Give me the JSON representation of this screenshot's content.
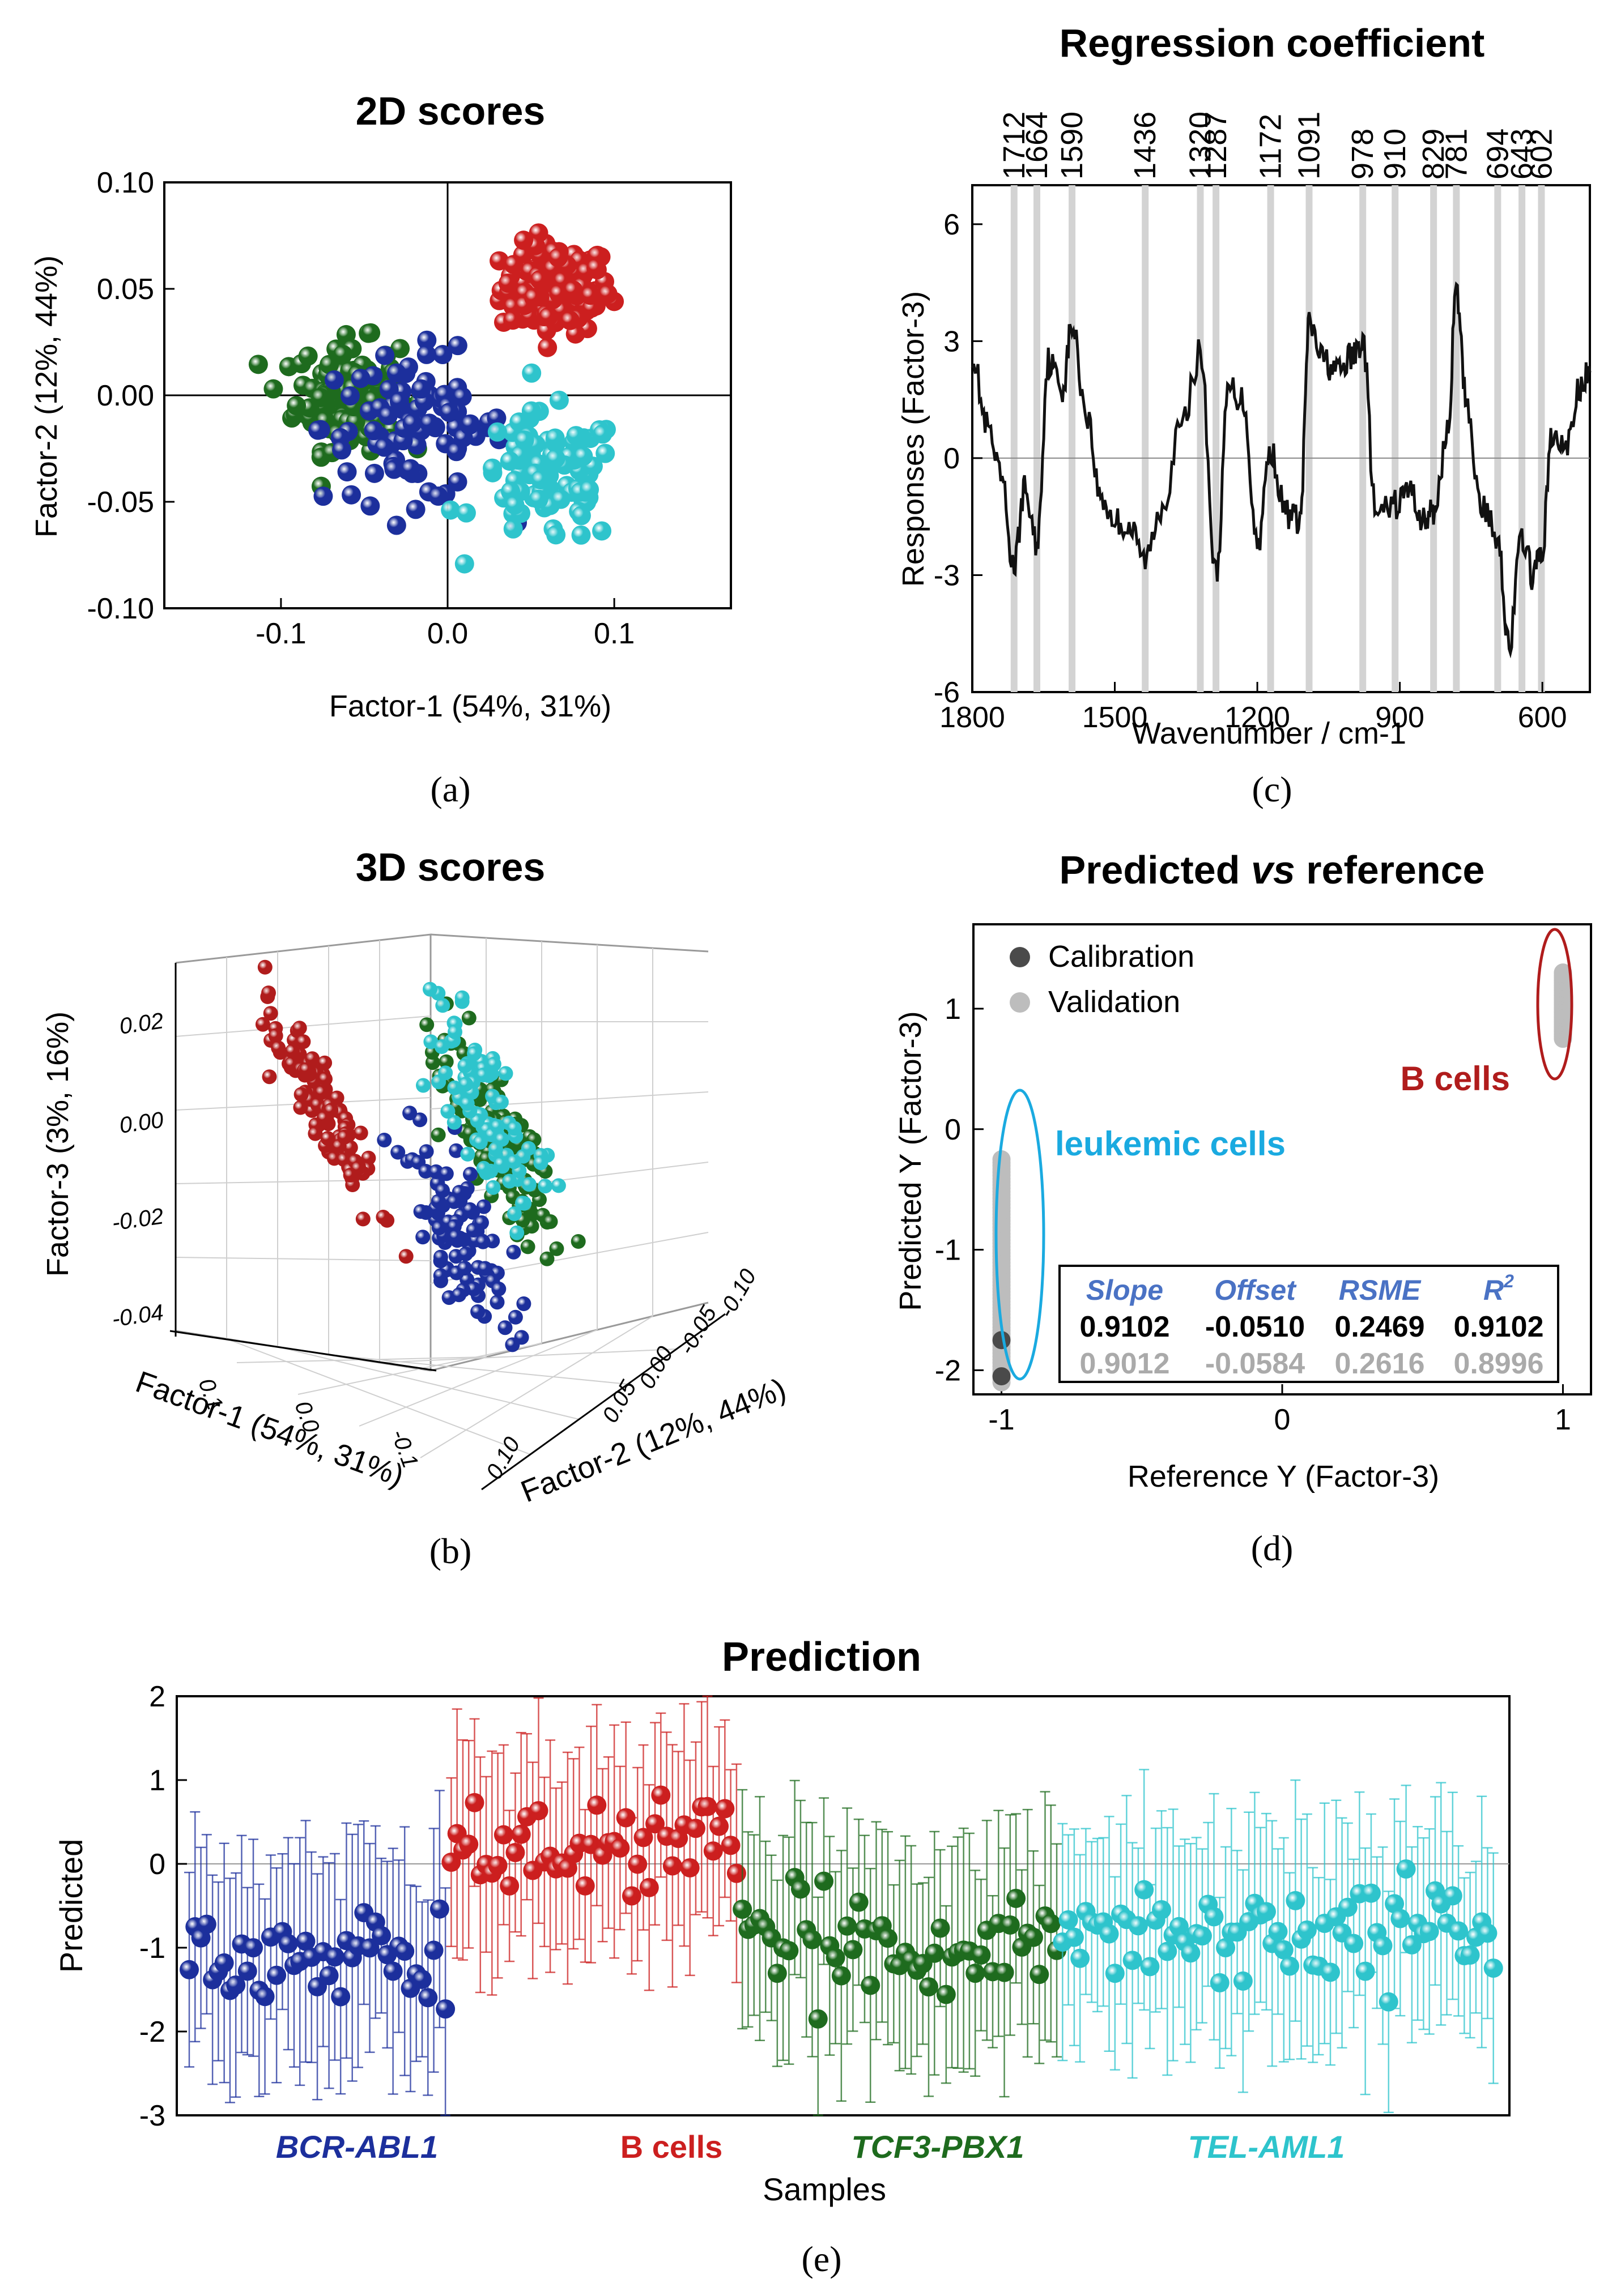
{
  "figure": {
    "panels": {
      "a": "(a)",
      "b": "(b)",
      "c": "(c)",
      "d": "(d)",
      "e": "(e)"
    }
  },
  "chart_data": [
    {
      "id": "a",
      "type": "scatter",
      "title": "2D scores",
      "xlabel": "Factor-1 (54%, 31%)",
      "ylabel": "Factor-2 (12%, 44%)",
      "xlim": [
        -0.17,
        0.17
      ],
      "ylim": [
        -0.1,
        0.1
      ],
      "xticks": [
        -0.1,
        0.0,
        0.1
      ],
      "xtick_labels": [
        "-0.1",
        "0.0",
        "0.1"
      ],
      "yticks": [
        -0.1,
        -0.05,
        0.0,
        0.05,
        0.1
      ],
      "ytick_labels": [
        "-0.10",
        "-0.05",
        "0.00",
        "0.05",
        "0.10"
      ],
      "series": [
        {
          "name": "B cells",
          "color": "#cc1f1f",
          "center": [
            0.065,
            0.05
          ],
          "spread": [
            0.03,
            0.015
          ],
          "count": 120
        },
        {
          "name": "TCF3-PBX1",
          "color": "#1e6b1e",
          "center": [
            -0.06,
            0.0
          ],
          "spread": [
            0.028,
            0.018
          ],
          "count": 150
        },
        {
          "name": "BCR-ABL1",
          "color": "#1c2f9c",
          "center": [
            -0.02,
            -0.015
          ],
          "spread": [
            0.05,
            0.025
          ],
          "count": 90
        },
        {
          "name": "TEL-AML1",
          "color": "#2ec4cc",
          "center": [
            0.06,
            -0.04
          ],
          "spread": [
            0.04,
            0.022
          ],
          "count": 90
        }
      ]
    },
    {
      "id": "c",
      "type": "line",
      "title": "Regression coefficient",
      "xlabel": "Wavenumber / cm-1",
      "ylabel": "Responses (Factor-3)",
      "xlim": [
        1800,
        500
      ],
      "ylim": [
        -6,
        7
      ],
      "xticks": [
        1800,
        1500,
        1200,
        900,
        600
      ],
      "xtick_labels": [
        "1800",
        "1500",
        "1200",
        "900",
        "600"
      ],
      "yticks": [
        -6,
        -3,
        0,
        3,
        6
      ],
      "ytick_labels": [
        "-6",
        "-3",
        "0",
        "3",
        "6"
      ],
      "bands": [
        1712,
        1664,
        1590,
        1436,
        1320,
        1287,
        1172,
        1091,
        978,
        910,
        829,
        781,
        694,
        643,
        602
      ],
      "band_labels": [
        "1712",
        "1664",
        "1590",
        "1436",
        "1320",
        "1287",
        "1172",
        "1091",
        "978",
        "910",
        "829",
        "781",
        "694",
        "643",
        "602"
      ],
      "x": [
        1800,
        1770,
        1740,
        1712,
        1690,
        1664,
        1640,
        1610,
        1590,
        1560,
        1530,
        1500,
        1470,
        1436,
        1400,
        1360,
        1320,
        1287,
        1260,
        1230,
        1200,
        1172,
        1140,
        1110,
        1091,
        1060,
        1030,
        1000,
        978,
        950,
        910,
        880,
        850,
        829,
        800,
        781,
        760,
        730,
        694,
        670,
        643,
        620,
        602,
        580,
        550,
        520,
        500
      ],
      "y": [
        2.7,
        0.8,
        -0.5,
        -2.8,
        -0.8,
        -2.2,
        2.5,
        1.8,
        3.4,
        1.2,
        -1.0,
        -1.6,
        -1.8,
        -2.6,
        -1.2,
        0.8,
        2.7,
        -3.0,
        1.8,
        1.5,
        -2.2,
        0.2,
        -1.4,
        -1.6,
        3.4,
        2.5,
        2.2,
        2.6,
        3.0,
        -1.5,
        -1.2,
        -0.8,
        -1.6,
        -1.4,
        0.6,
        4.2,
        1.5,
        -1.2,
        -2.0,
        -4.8,
        -2.0,
        -3.0,
        -2.5,
        0.5,
        0.3,
        1.8,
        2.2
      ]
    },
    {
      "id": "b",
      "type": "scatter",
      "title": "3D scores",
      "xlabel": "Factor-1 (54%, 31%)",
      "ylabel": "Factor-2 (12%, 44%)",
      "zlabel": "Factor-3 (3%, 16%)",
      "x_tick_labels": [
        "0.1",
        "0.0",
        "-0.1"
      ],
      "y_tick_labels": [
        "-0.10",
        "-0.05",
        "0.00",
        "0.05",
        "0.10"
      ],
      "z_tick_labels": [
        "-0.04",
        "-0.02",
        "0.00",
        "0.02"
      ],
      "zlim": [
        -0.04,
        0.03
      ],
      "series": [
        {
          "name": "B cells",
          "color": "#b01c1c",
          "count": 120
        },
        {
          "name": "TCF3-PBX1",
          "color": "#1e6b1e",
          "count": 150
        },
        {
          "name": "BCR-ABL1",
          "color": "#1c2f9c",
          "count": 90
        },
        {
          "name": "TEL-AML1",
          "color": "#2ec4cc",
          "count": 90
        }
      ]
    },
    {
      "id": "d",
      "type": "scatter",
      "title_pre": "Predicted ",
      "title_em": "vs",
      "title_post": " reference",
      "xlabel": "Reference Y (Factor-3)",
      "ylabel": "Predicted Y (Factor-3)",
      "xlim": [
        -1.1,
        1.1
      ],
      "ylim": [
        -2.2,
        1.7
      ],
      "xticks": [
        -1,
        0,
        1
      ],
      "xtick_labels": [
        "-1",
        "0",
        "1"
      ],
      "yticks": [
        -2,
        -1,
        0,
        1
      ],
      "ytick_labels": [
        "-2",
        "-1",
        "0",
        "1"
      ],
      "legend": [
        {
          "label": "Calibration",
          "color": "#4a4a4a"
        },
        {
          "label": "Validation",
          "color": "#bdbdbd"
        }
      ],
      "groups": [
        {
          "label": "B cells",
          "color": "#b01c1c",
          "x": 1,
          "y_range": [
            0.75,
            1.3
          ]
        },
        {
          "label": "leukemic cells",
          "color": "#1aaae0",
          "x": -1,
          "y_range": [
            -2.1,
            -0.25
          ]
        }
      ],
      "stats_table": {
        "headers": [
          "Slope",
          "Offset",
          "RSME",
          "R"
        ],
        "header_sup": "2",
        "calibration": [
          "0.9102",
          "-0.0510",
          "0.2469",
          "0.9102"
        ],
        "validation": [
          "0.9012",
          "-0.0584",
          "0.2616",
          "0.8996"
        ]
      }
    },
    {
      "id": "e",
      "type": "scatter",
      "title": "Prediction",
      "xlabel": "Samples",
      "ylabel": "Predicted",
      "ylim": [
        -3,
        2
      ],
      "yticks": [
        -3,
        -2,
        -1,
        0,
        1,
        2
      ],
      "ytick_labels": [
        "-3",
        "-2",
        "-1",
        "0",
        "1",
        "2"
      ],
      "series": [
        {
          "name": "BCR-ABL1",
          "color": "#1c2f9c",
          "mean": -1.2,
          "count": 45
        },
        {
          "name": "B cells",
          "color": "#cc1f1f",
          "mean": 0.2,
          "count": 50
        },
        {
          "name": "TCF3-PBX1",
          "color": "#1e6b1e",
          "mean": -0.95,
          "count": 55
        },
        {
          "name": "TEL-AML1",
          "color": "#2ec4cc",
          "mean": -0.8,
          "count": 75
        }
      ],
      "category_labels": [
        "BCR-ABL1",
        "B cells",
        "TCF3-PBX1",
        "TEL-AML1"
      ]
    }
  ]
}
